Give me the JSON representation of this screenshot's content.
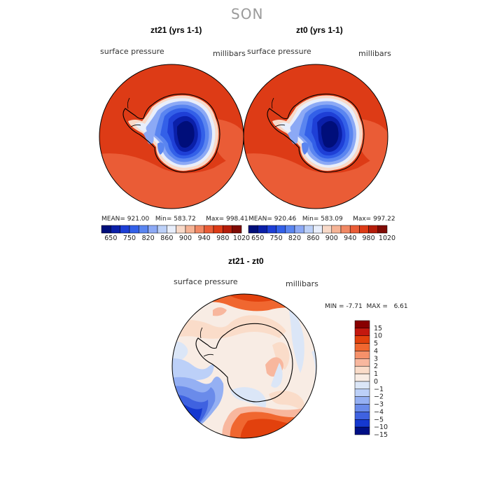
{
  "season": "SON",
  "chart_data": [
    {
      "type": "polar_contour_map",
      "title": "zt21 (yrs 1-1)",
      "variable": "surface pressure",
      "units": "millibars",
      "stats": {
        "mean": "921.00",
        "min": "583.72",
        "max": "998.41"
      },
      "colorbar_ticks": [
        "650",
        "750",
        "820",
        "860",
        "900",
        "940",
        "980",
        "1020"
      ]
    },
    {
      "type": "polar_contour_map",
      "title": "zt0 (yrs 1-1)",
      "variable": "surface pressure",
      "units": "millibars",
      "stats": {
        "mean": "920.46",
        "min": "583.09",
        "max": "997.22"
      },
      "colorbar_ticks": [
        "650",
        "750",
        "820",
        "860",
        "900",
        "940",
        "980",
        "1020"
      ]
    },
    {
      "type": "polar_contour_map",
      "title": "zt21 - zt0",
      "variable": "surface pressure",
      "units": "millibars",
      "stats": {
        "min": "-7.71",
        "max": "6.61"
      },
      "colorbar_ticks": [
        "15",
        "10",
        "5",
        "4",
        "3",
        "2",
        "1",
        "0",
        "−1",
        "−2",
        "−3",
        "−4",
        "−5",
        "−10",
        "−15"
      ]
    }
  ],
  "labels": {
    "mean_prefix": "MEAN=",
    "min_prefix": "Min=",
    "max_prefix": "Max=",
    "diff_min_prefix": "MIN =",
    "diff_max_prefix": "MAX ="
  },
  "colors": {
    "abs_scale": [
      "#000e7a",
      "#0a1fa8",
      "#1e3fd6",
      "#3360e8",
      "#5a85f0",
      "#8ca9f5",
      "#bcd0f8",
      "#e8eefb",
      "#f8d9c8",
      "#f5b395",
      "#f18864",
      "#ea5c36",
      "#dd3b16",
      "#b51d0a",
      "#7f0b05"
    ],
    "diff_scale": [
      "#880000",
      "#c4180f",
      "#e2410d",
      "#f06730",
      "#f5916a",
      "#f8b79e",
      "#fadcc9",
      "#f8ece4",
      "#dbe6f7",
      "#bcd0f8",
      "#95b0f3",
      "#6a8bea",
      "#3f62e0",
      "#1538d0",
      "#000f85"
    ]
  }
}
